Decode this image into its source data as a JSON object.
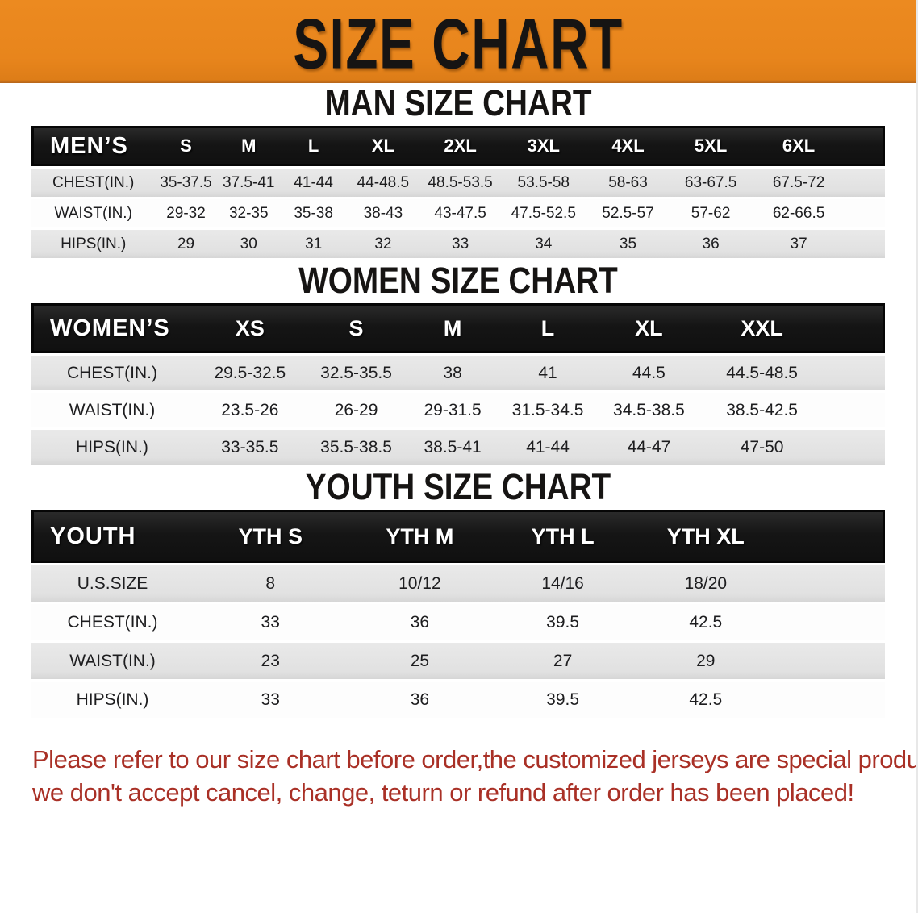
{
  "banner": {
    "title": "SIZE CHART"
  },
  "colors": {
    "banner_orange": "#E8851C",
    "header_black": "#151515",
    "row_gray": "#E2E2E2",
    "note_red": "#A93026"
  },
  "tables": [
    {
      "heading": "MAN SIZE CHART",
      "label": "MEN’S",
      "sizes": [
        "S",
        "M",
        "L",
        "XL",
        "2XL",
        "3XL",
        "4XL",
        "5XL",
        "6XL"
      ],
      "rows": [
        {
          "label": "CHEST(IN.)",
          "values": [
            "35-37.5",
            "37.5-41",
            "41-44",
            "44-48.5",
            "48.5-53.5",
            "53.5-58",
            "58-63",
            "63-67.5",
            "67.5-72"
          ]
        },
        {
          "label": "WAIST(IN.)",
          "values": [
            "29-32",
            "32-35",
            "35-38",
            "38-43",
            "43-47.5",
            "47.5-52.5",
            "52.5-57",
            "57-62",
            "62-66.5"
          ]
        },
        {
          "label": "HIPS(IN.)",
          "values": [
            "29",
            "30",
            "31",
            "32",
            "33",
            "34",
            "35",
            "36",
            "37"
          ]
        }
      ]
    },
    {
      "heading": "WOMEN SIZE CHART",
      "label": "WOMEN’S",
      "sizes": [
        "XS",
        "S",
        "M",
        "L",
        "XL",
        "XXL"
      ],
      "rows": [
        {
          "label": "CHEST(IN.)",
          "values": [
            "29.5-32.5",
            "32.5-35.5",
            "38",
            "41",
            "44.5",
            "44.5-48.5"
          ]
        },
        {
          "label": "WAIST(IN.)",
          "values": [
            "23.5-26",
            "26-29",
            "29-31.5",
            "31.5-34.5",
            "34.5-38.5",
            "38.5-42.5"
          ]
        },
        {
          "label": "HIPS(IN.)",
          "values": [
            "33-35.5",
            "35.5-38.5",
            "38.5-41",
            "41-44",
            "44-47",
            "47-50"
          ]
        }
      ]
    },
    {
      "heading": "YOUTH SIZE CHART",
      "label": "YOUTH",
      "sizes": [
        "YTH S",
        "YTH M",
        "YTH L",
        "YTH XL"
      ],
      "rows": [
        {
          "label": "U.S.SIZE",
          "values": [
            "8",
            "10/12",
            "14/16",
            "18/20"
          ]
        },
        {
          "label": "CHEST(IN.)",
          "values": [
            "33",
            "36",
            "39.5",
            "42.5"
          ]
        },
        {
          "label": "WAIST(IN.)",
          "values": [
            "23",
            "25",
            "27",
            "29"
          ]
        },
        {
          "label": "HIPS(IN.)",
          "values": [
            "33",
            "36",
            "39.5",
            "42.5"
          ]
        }
      ]
    }
  ],
  "note": {
    "line1": "Please refer to our size chart before order,the customized jerseys are special products,",
    "line2": "we don't accept cancel, change, teturn or refund after order has been placed!"
  }
}
